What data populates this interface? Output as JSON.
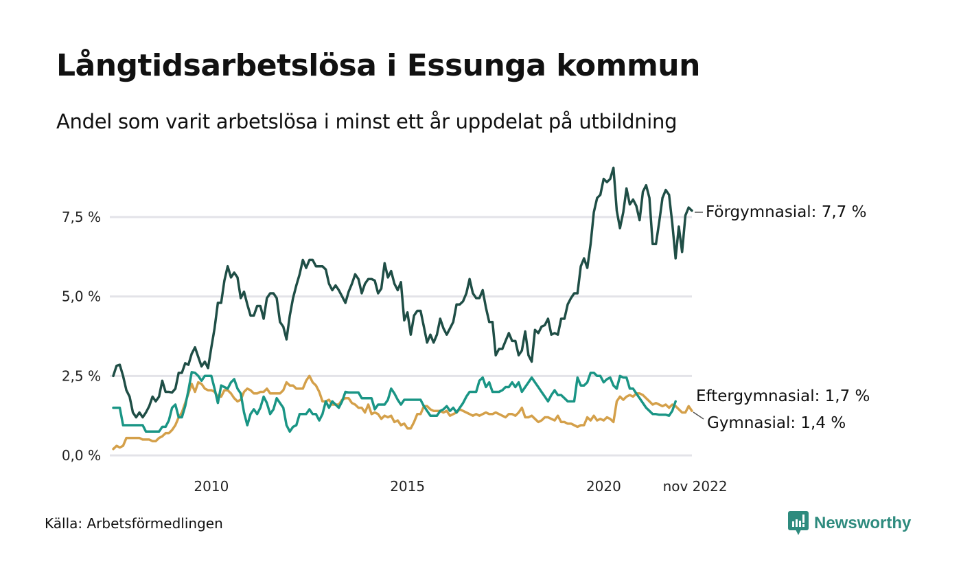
{
  "header": {
    "title": "Långtidsarbetslösa i Essunga kommun",
    "subtitle": "Andel som varit arbetslösa i minst ett år uppdelat på utbildning"
  },
  "footer": {
    "source": "Källa: Arbetsförmedlingen",
    "brand": "Newsworthy",
    "brand_icon": "bar-chart-speech-bubble-icon",
    "brand_color": "#2e8b7e"
  },
  "chart_data": {
    "type": "line",
    "title": "Långtidsarbetslösa i Essunga kommun",
    "subtitle": "Andel som varit arbetslösa i minst ett år uppdelat på utbildning",
    "xlabel": "",
    "ylabel": "",
    "x_start": "2008-01",
    "x_end": "2022-11",
    "frequency": "monthly",
    "x_ticks": [
      {
        "label": "2010",
        "date": 2010.5
      },
      {
        "label": "2015",
        "date": 2015.5
      },
      {
        "label": "2020",
        "date": 2020.5
      },
      {
        "label": "nov 2022",
        "date": 2022.83
      }
    ],
    "y_ticks": [
      {
        "label": "0,0 %",
        "value": 0
      },
      {
        "label": "2,5 %",
        "value": 2.5
      },
      {
        "label": "5,0 %",
        "value": 5.0
      },
      {
        "label": "7,5 %",
        "value": 7.5
      }
    ],
    "ylim": [
      0,
      9.2
    ],
    "grid": true,
    "legend": "end-of-line labels (right)",
    "series": [
      {
        "name": "Förgymnasial",
        "end_label": "Förgymnasial: 7,7 %",
        "color": "#1f4e46",
        "values": [
          2.5,
          2.82,
          2.85,
          2.5,
          2.05,
          1.85,
          1.35,
          1.2,
          1.35,
          1.2,
          1.35,
          1.55,
          1.85,
          1.7,
          1.85,
          2.35,
          2.0,
          2.0,
          1.98,
          2.1,
          2.6,
          2.6,
          2.9,
          2.85,
          3.2,
          3.4,
          3.1,
          2.8,
          2.95,
          2.75,
          3.4,
          4.0,
          4.8,
          4.8,
          5.5,
          5.95,
          5.6,
          5.75,
          5.6,
          4.95,
          5.15,
          4.75,
          4.4,
          4.4,
          4.7,
          4.7,
          4.3,
          4.95,
          5.1,
          5.1,
          4.95,
          4.2,
          4.05,
          3.65,
          4.4,
          4.95,
          5.35,
          5.7,
          6.15,
          5.9,
          6.15,
          6.15,
          5.95,
          5.95,
          5.95,
          5.85,
          5.4,
          5.2,
          5.35,
          5.2,
          5.0,
          4.8,
          5.15,
          5.4,
          5.7,
          5.55,
          5.1,
          5.4,
          5.55,
          5.55,
          5.5,
          5.1,
          5.25,
          6.05,
          5.6,
          5.8,
          5.4,
          5.2,
          5.45,
          4.25,
          4.5,
          3.8,
          4.4,
          4.55,
          4.55,
          4.05,
          3.55,
          3.8,
          3.55,
          3.8,
          4.3,
          4.0,
          3.8,
          4.0,
          4.2,
          4.75,
          4.75,
          4.85,
          5.1,
          5.55,
          5.1,
          4.95,
          4.95,
          5.2,
          4.65,
          4.2,
          4.2,
          3.15,
          3.35,
          3.35,
          3.6,
          3.85,
          3.6,
          3.6,
          3.15,
          3.3,
          3.9,
          3.15,
          2.95,
          3.95,
          3.85,
          4.05,
          4.1,
          4.3,
          3.8,
          3.85,
          3.8,
          4.3,
          4.3,
          4.75,
          4.95,
          5.1,
          5.1,
          5.95,
          6.2,
          5.9,
          6.65,
          7.65,
          8.1,
          8.2,
          8.7,
          8.6,
          8.7,
          9.05,
          7.7,
          7.15,
          7.65,
          8.4,
          7.9,
          8.05,
          7.85,
          7.4,
          8.3,
          8.5,
          8.1,
          6.65,
          6.65,
          7.35,
          8.1,
          8.35,
          8.2,
          7.3,
          6.2,
          7.2,
          6.4,
          7.55,
          7.8,
          7.7
        ]
      },
      {
        "name": "Eftergymnasial",
        "end_label": "Eftergymnasial: 1,7 %",
        "color": "#1a9585",
        "values": [
          1.5,
          1.5,
          1.5,
          0.95,
          0.95,
          0.95,
          0.95,
          0.95,
          0.95,
          0.95,
          0.75,
          0.75,
          0.75,
          0.75,
          0.75,
          0.9,
          0.9,
          1.1,
          1.5,
          1.6,
          1.2,
          1.2,
          1.55,
          2.05,
          2.62,
          2.6,
          2.5,
          2.35,
          2.5,
          2.5,
          2.5,
          2.1,
          1.65,
          2.2,
          2.15,
          2.1,
          2.3,
          2.4,
          2.1,
          1.95,
          1.35,
          0.95,
          1.3,
          1.45,
          1.3,
          1.5,
          1.85,
          1.65,
          1.3,
          1.45,
          1.8,
          1.65,
          1.5,
          0.95,
          0.75,
          0.9,
          0.95,
          1.3,
          1.3,
          1.3,
          1.45,
          1.3,
          1.3,
          1.1,
          1.3,
          1.7,
          1.5,
          1.7,
          1.6,
          1.5,
          1.7,
          2.0,
          1.98,
          1.98,
          1.98,
          1.98,
          1.8,
          1.8,
          1.8,
          1.8,
          1.45,
          1.6,
          1.6,
          1.6,
          1.75,
          2.1,
          1.95,
          1.75,
          1.6,
          1.75,
          1.75,
          1.75,
          1.75,
          1.75,
          1.75,
          1.55,
          1.4,
          1.25,
          1.25,
          1.25,
          1.4,
          1.45,
          1.55,
          1.4,
          1.5,
          1.35,
          1.5,
          1.65,
          1.85,
          2.0,
          2.0,
          2.0,
          2.35,
          2.45,
          2.15,
          2.3,
          2.0,
          2.0,
          2.0,
          2.05,
          2.15,
          2.15,
          2.3,
          2.15,
          2.3,
          2.0,
          2.15,
          2.3,
          2.45,
          2.3,
          2.15,
          2.0,
          1.85,
          1.7,
          1.9,
          2.05,
          1.9,
          1.9,
          1.8,
          1.7,
          1.7,
          1.7,
          2.45,
          2.2,
          2.2,
          2.3,
          2.6,
          2.6,
          2.5,
          2.5,
          2.3,
          2.4,
          2.45,
          2.2,
          2.1,
          2.5,
          2.45,
          2.45,
          2.1,
          2.1,
          1.95,
          1.8,
          1.65,
          1.5,
          1.4,
          1.3,
          1.3,
          1.28,
          1.28,
          1.28,
          1.25,
          1.4,
          1.7
        ]
      },
      {
        "name": "Gymnasial",
        "end_label": "Gymnasial: 1,4 %",
        "color": "#d4a04a",
        "values": [
          0.2,
          0.3,
          0.25,
          0.3,
          0.55,
          0.55,
          0.55,
          0.55,
          0.55,
          0.5,
          0.5,
          0.5,
          0.45,
          0.45,
          0.55,
          0.6,
          0.7,
          0.7,
          0.8,
          0.95,
          1.2,
          1.35,
          1.65,
          1.95,
          2.25,
          2.0,
          2.3,
          2.25,
          2.1,
          2.05,
          2.05,
          2.0,
          1.85,
          1.85,
          2.05,
          2.05,
          1.95,
          1.8,
          1.7,
          1.75,
          2.0,
          2.1,
          2.05,
          1.95,
          1.95,
          2.0,
          2.0,
          2.1,
          1.95,
          1.95,
          1.95,
          1.95,
          2.05,
          2.3,
          2.2,
          2.2,
          2.1,
          2.1,
          2.1,
          2.35,
          2.5,
          2.3,
          2.2,
          2.0,
          1.7,
          1.7,
          1.75,
          1.6,
          1.6,
          1.6,
          1.75,
          1.8,
          1.8,
          1.65,
          1.6,
          1.5,
          1.5,
          1.35,
          1.6,
          1.3,
          1.35,
          1.3,
          1.15,
          1.25,
          1.2,
          1.25,
          1.05,
          1.1,
          0.95,
          1.0,
          0.85,
          0.85,
          1.05,
          1.3,
          1.3,
          1.55,
          1.55,
          1.45,
          1.4,
          1.4,
          1.4,
          1.35,
          1.4,
          1.25,
          1.3,
          1.35,
          1.45,
          1.4,
          1.35,
          1.3,
          1.25,
          1.3,
          1.25,
          1.3,
          1.35,
          1.3,
          1.3,
          1.35,
          1.3,
          1.25,
          1.2,
          1.3,
          1.3,
          1.25,
          1.35,
          1.5,
          1.2,
          1.2,
          1.25,
          1.15,
          1.05,
          1.1,
          1.2,
          1.2,
          1.15,
          1.1,
          1.25,
          1.05,
          1.05,
          1.0,
          1.0,
          0.95,
          0.9,
          0.95,
          0.95,
          1.2,
          1.1,
          1.25,
          1.1,
          1.15,
          1.1,
          1.2,
          1.15,
          1.05,
          1.7,
          1.85,
          1.75,
          1.85,
          1.9,
          1.85,
          1.95,
          1.95,
          1.9,
          1.8,
          1.7,
          1.6,
          1.65,
          1.6,
          1.55,
          1.6,
          1.5,
          1.6,
          1.55,
          1.45,
          1.35,
          1.35,
          1.55,
          1.4
        ]
      }
    ]
  }
}
